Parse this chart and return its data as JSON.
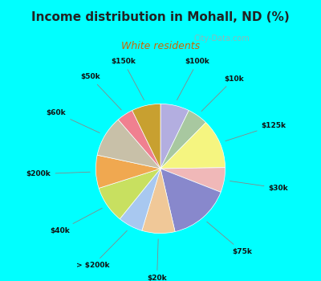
{
  "title": "Income distribution in Mohall, ND (%)",
  "subtitle": "White residents",
  "background_color": "#00ffff",
  "chart_bg": "#e0ede8",
  "slices": [
    {
      "label": "$100k",
      "value": 7,
      "color": "#b3aee0"
    },
    {
      "label": "$10k",
      "value": 5,
      "color": "#a8c8a0"
    },
    {
      "label": "$125k",
      "value": 12,
      "color": "#f5f580"
    },
    {
      "label": "$30k",
      "value": 6,
      "color": "#f0b8b8"
    },
    {
      "label": "$75k",
      "value": 15,
      "color": "#8888cc"
    },
    {
      "label": "$20k",
      "value": 8,
      "color": "#f0c898"
    },
    {
      "label": "> $200k",
      "value": 6,
      "color": "#a8c8f0"
    },
    {
      "label": "$40k",
      "value": 9,
      "color": "#c8e060"
    },
    {
      "label": "$200k",
      "value": 8,
      "color": "#f0a850"
    },
    {
      "label": "$60k",
      "value": 10,
      "color": "#c8c0a8"
    },
    {
      "label": "$50k",
      "value": 4,
      "color": "#f08090"
    },
    {
      "label": "$150k",
      "value": 7,
      "color": "#c8a030"
    }
  ],
  "watermark": "City-Data.com"
}
